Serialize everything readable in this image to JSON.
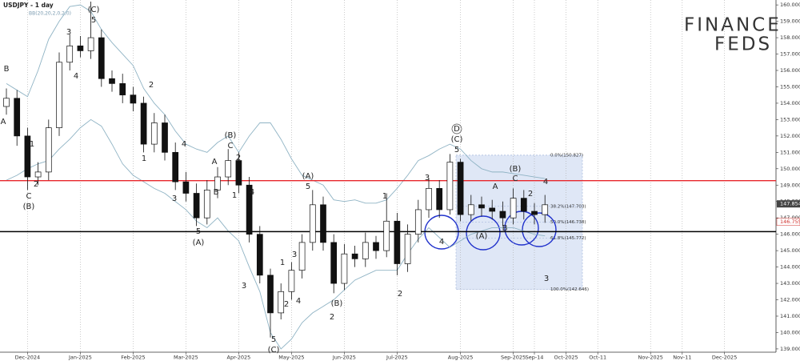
{
  "chart_data": {
    "type": "candlestick",
    "title": "USDJPY - 1 day",
    "indicator": "BB(20,20,2,0,2,0)",
    "logo": {
      "line1": "FINANCE",
      "line2": "FEDS"
    },
    "categories": [
      null,
      null,
      "Dec-2024",
      null,
      null,
      null,
      null,
      "Jan-2025",
      null,
      null,
      null,
      null,
      "Feb-2025",
      null,
      null,
      null,
      null,
      "Mar-2025",
      null,
      null,
      null,
      null,
      "Apr-2025",
      null,
      null,
      null,
      null,
      "May-2025",
      null,
      null,
      null,
      null,
      "Jun-2025",
      null,
      null,
      null,
      null,
      "Jul-2025",
      null,
      null,
      null,
      null,
      null,
      "Aug-2025",
      null,
      null,
      null,
      null,
      "Sep-2025",
      null,
      "Sep-14",
      null,
      null,
      "Oct-2025",
      null,
      null,
      "Oct-11",
      null,
      null,
      null,
      null,
      "Nov-2025",
      null,
      null,
      "Nov-11",
      null,
      null,
      null,
      "Dec-2025",
      null,
      null,
      null,
      null
    ],
    "open": [
      153.8,
      154.3,
      152.0,
      149.5,
      149.8,
      152.5,
      156.5,
      157.5,
      157.2,
      158.0,
      155.5,
      155.2,
      154.5,
      154.0,
      151.5,
      152.8,
      151.0,
      149.2,
      148.5,
      147.0,
      148.7,
      149.5,
      150.5,
      149.0,
      146.0,
      143.5,
      141.2,
      142.5,
      143.8,
      145.5,
      147.8,
      145.5,
      143.0,
      144.8,
      144.5,
      145.5,
      145.0,
      146.8,
      144.2,
      146.0,
      147.5,
      148.8,
      147.5,
      150.4,
      147.2,
      147.8,
      147.6,
      147.4,
      147.0,
      148.2,
      147.4,
      147.2,
      null,
      null,
      null,
      null,
      null,
      null,
      null,
      null,
      null,
      null,
      null,
      null,
      null,
      null,
      null,
      null,
      null,
      null,
      null,
      null,
      null
    ],
    "high": [
      154.9,
      154.8,
      152.5,
      150.4,
      153.0,
      157.1,
      158.2,
      158.1,
      160.2,
      158.5,
      156.0,
      155.8,
      155.0,
      154.4,
      153.4,
      153.3,
      151.6,
      149.8,
      149.1,
      149.3,
      150.1,
      151.2,
      151.0,
      149.5,
      146.5,
      143.9,
      143.0,
      144.3,
      146.0,
      148.7,
      148.3,
      146.0,
      145.4,
      145.3,
      146.1,
      145.9,
      148.5,
      147.3,
      146.6,
      148.1,
      149.4,
      149.3,
      150.9,
      150.6,
      148.4,
      148.3,
      148.1,
      148.0,
      148.8,
      148.7,
      147.9,
      148.4,
      null,
      null,
      null,
      null,
      null,
      null,
      null,
      null,
      null,
      null,
      null,
      null,
      null,
      null,
      null,
      null,
      null,
      null,
      null,
      null,
      null
    ],
    "low": [
      153.3,
      151.4,
      148.7,
      149.0,
      149.3,
      152.0,
      156.0,
      156.8,
      156.7,
      155.0,
      154.7,
      154.0,
      153.5,
      151.0,
      151.0,
      150.5,
      148.7,
      148.0,
      146.5,
      146.6,
      148.2,
      149.0,
      148.5,
      145.5,
      143.0,
      139.7,
      140.8,
      142.0,
      143.3,
      145.0,
      145.0,
      142.4,
      142.6,
      144.0,
      144.0,
      144.5,
      144.6,
      143.5,
      143.7,
      145.5,
      147.0,
      147.0,
      147.2,
      146.8,
      146.8,
      147.1,
      146.9,
      146.5,
      146.6,
      146.9,
      146.6,
      146.7,
      null,
      null,
      null,
      null,
      null,
      null,
      null,
      null,
      null,
      null,
      null,
      null,
      null,
      null,
      null,
      null,
      null,
      null,
      null,
      null,
      null
    ],
    "close": [
      154.3,
      152.0,
      149.5,
      149.8,
      152.5,
      156.5,
      157.5,
      157.2,
      158.0,
      155.5,
      155.2,
      154.5,
      154.0,
      151.5,
      152.8,
      151.0,
      149.2,
      148.5,
      147.0,
      148.7,
      149.5,
      150.5,
      149.0,
      146.0,
      143.5,
      141.2,
      142.5,
      143.8,
      145.5,
      147.8,
      145.5,
      143.0,
      144.8,
      144.5,
      145.5,
      145.0,
      146.8,
      144.2,
      146.0,
      147.5,
      148.8,
      147.5,
      150.4,
      147.2,
      147.8,
      147.6,
      147.4,
      147.0,
      148.2,
      147.4,
      147.2,
      147.8,
      null,
      null,
      null,
      null,
      null,
      null,
      null,
      null,
      null,
      null,
      null,
      null,
      null,
      null,
      null,
      null,
      null,
      null,
      null,
      null,
      null
    ],
    "up_color": "#ffffff",
    "down_color": "#111111",
    "series": [
      {
        "color": "#8fb3c4",
        "values": [
          155.2,
          154.8,
          154.4,
          156.0,
          157.9,
          159.0,
          159.9,
          160.0,
          159.6,
          158.5,
          157.7,
          157.0,
          156.3,
          154.9,
          154.0,
          153.3,
          152.3,
          151.5,
          151.2,
          151.0,
          151.6,
          152.0,
          151.0,
          152.0,
          152.8,
          152.8,
          151.8,
          150.6,
          149.6,
          149.3,
          149.0,
          148.1,
          148.0,
          148.1,
          147.9,
          147.9,
          148.1,
          148.8,
          149.6,
          150.5,
          150.8,
          151.2,
          151.5,
          151.2,
          150.5,
          150.0,
          149.8,
          149.8,
          149.7,
          149.6,
          149.5,
          149.4,
          null,
          null,
          null,
          null,
          null,
          null,
          null,
          null,
          null,
          null,
          null,
          null,
          null,
          null,
          null,
          null,
          null,
          null,
          null,
          null,
          null
        ]
      },
      {
        "color": "#8fb3c4",
        "values": [
          149.3,
          149.6,
          150.0,
          150.3,
          150.5,
          151.2,
          151.8,
          152.5,
          153.0,
          152.6,
          151.5,
          150.3,
          149.6,
          149.2,
          148.8,
          148.5,
          148.0,
          147.5,
          146.8,
          146.4,
          147.0,
          146.2,
          145.6,
          144.0,
          142.5,
          140.0,
          139.0,
          139.6,
          140.6,
          141.2,
          141.6,
          142.0,
          142.6,
          143.2,
          143.5,
          143.8,
          143.8,
          143.8,
          144.8,
          145.7,
          146.4,
          145.8,
          145.2,
          145.6,
          146.0,
          146.2,
          146.4,
          146.4,
          146.4,
          146.2,
          146.0,
          145.9,
          null,
          null,
          null,
          null,
          null,
          null,
          null,
          null,
          null,
          null,
          null,
          null,
          null,
          null,
          null,
          null,
          null,
          null,
          null,
          null,
          null
        ]
      }
    ],
    "hlines": [
      {
        "value": 149.27,
        "color": "#e8262b"
      },
      {
        "value": 146.16,
        "color": "#000000"
      }
    ],
    "fib_levels": [
      {
        "value": 150.827,
        "label": "0.0%(150.827)"
      },
      {
        "value": 147.703,
        "label": "38.2%(147.703)"
      },
      {
        "value": 146.738,
        "label": "50.0%(146.738)"
      },
      {
        "value": 145.772,
        "label": "61.8%(145.772)"
      },
      {
        "value": 142.646,
        "label": "100.0%(142.646)"
      }
    ],
    "price_tags": [
      {
        "value": 147.854,
        "label": "147.854",
        "color": "#444444"
      },
      {
        "value": 146.755,
        "label": "146.755",
        "color": "#d0312d"
      }
    ],
    "annotations": [
      "B",
      "A",
      "1",
      "2",
      "C",
      "(B)",
      "3",
      "4",
      "(C)",
      "5",
      "2",
      "1",
      "3",
      "4",
      "A",
      "C",
      "(B)",
      "2",
      "B",
      "1",
      "5",
      "(A)",
      "4",
      "3",
      "5",
      "(C)",
      "1",
      "2",
      "3",
      "4",
      "(A)",
      "5",
      "(B)",
      "2",
      "1",
      "2",
      "3",
      "4",
      "D",
      "(C)",
      "5",
      "(A)",
      "A",
      "B",
      "(B)",
      "C",
      "2",
      "4",
      "3"
    ],
    "ylim": [
      138.8,
      160.3
    ],
    "yticks": [
      {
        "value": 139,
        "label": "139.000"
      },
      {
        "value": 140,
        "label": "140.000"
      },
      {
        "value": 141,
        "label": "141.000"
      },
      {
        "value": 142,
        "label": "142.000"
      },
      {
        "value": 143,
        "label": "143.000"
      },
      {
        "value": 144,
        "label": "144.000"
      },
      {
        "value": 145,
        "label": "145.000"
      },
      {
        "value": 146,
        "label": "146.000"
      },
      {
        "value": 147,
        "label": "147.000"
      },
      {
        "value": 148,
        "label": "148.000"
      },
      {
        "value": 149,
        "label": "149.000"
      },
      {
        "value": 150,
        "label": "150.000"
      },
      {
        "value": 151,
        "label": "151.000"
      },
      {
        "value": 152,
        "label": "152.000"
      },
      {
        "value": 153,
        "label": "153.000"
      },
      {
        "value": 154,
        "label": "154.000"
      },
      {
        "value": 155,
        "label": "155.000"
      },
      {
        "value": 156,
        "label": "156.000"
      },
      {
        "value": 157,
        "label": "157.000"
      },
      {
        "value": 158,
        "label": "158.000"
      },
      {
        "value": 159,
        "label": "159.000"
      },
      {
        "value": 160,
        "label": "160.000"
      }
    ],
    "grid": true
  }
}
